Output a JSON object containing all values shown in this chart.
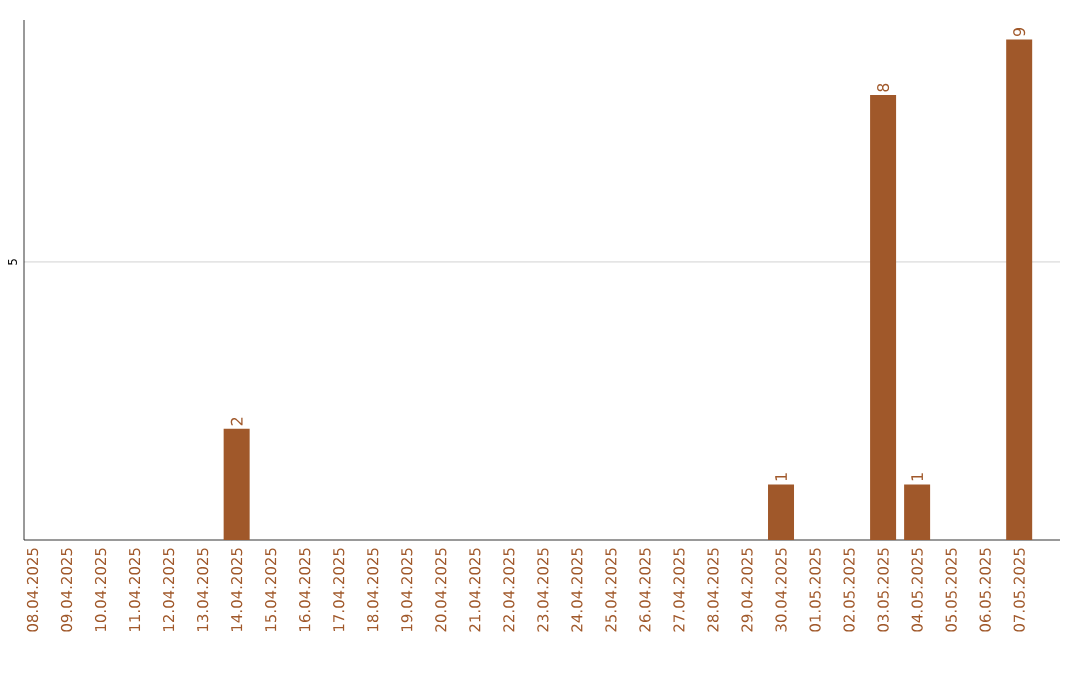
{
  "chart_data": {
    "type": "bar",
    "categories": [
      "08.04.2025",
      "09.04.2025",
      "10.04.2025",
      "11.04.2025",
      "12.04.2025",
      "13.04.2025",
      "14.04.2025",
      "15.04.2025",
      "16.04.2025",
      "17.04.2025",
      "18.04.2025",
      "19.04.2025",
      "20.04.2025",
      "21.04.2025",
      "22.04.2025",
      "23.04.2025",
      "24.04.2025",
      "25.04.2025",
      "26.04.2025",
      "27.04.2025",
      "28.04.2025",
      "29.04.2025",
      "30.04.2025",
      "01.05.2025",
      "02.05.2025",
      "03.05.2025",
      "04.05.2025",
      "05.05.2025",
      "06.05.2025",
      "07.05.2025"
    ],
    "values": [
      0,
      0,
      0,
      0,
      0,
      0,
      2,
      0,
      0,
      0,
      0,
      0,
      0,
      0,
      0,
      0,
      0,
      0,
      0,
      0,
      0,
      0,
      1,
      0,
      0,
      8,
      1,
      0,
      0,
      9
    ],
    "value_labels": [
      null,
      null,
      null,
      null,
      null,
      null,
      "2",
      null,
      null,
      null,
      null,
      null,
      null,
      null,
      null,
      null,
      null,
      null,
      null,
      null,
      null,
      null,
      "1",
      null,
      null,
      "8",
      "1",
      null,
      null,
      "9"
    ],
    "color": "#a0582a",
    "ylim": [
      0,
      9.35
    ],
    "yticks": [
      5
    ],
    "grid": "y"
  }
}
